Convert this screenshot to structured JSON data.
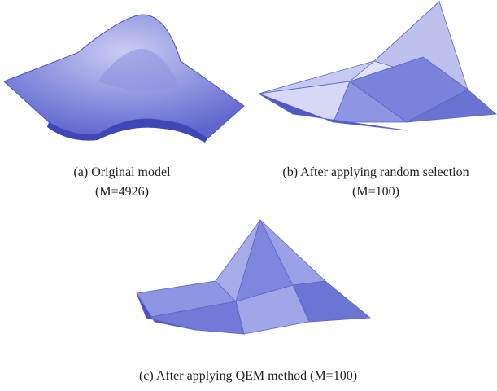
{
  "figure": {
    "panels": [
      {
        "caption": "(a) Original model",
        "detail": "(M=4926)"
      },
      {
        "caption": "(b) After applying random selection",
        "detail": "(M=100)"
      },
      {
        "caption": "(c) After applying QEM method (M=100)"
      }
    ]
  }
}
